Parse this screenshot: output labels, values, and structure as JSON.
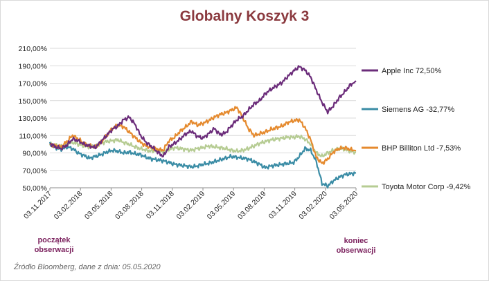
{
  "chart_data": {
    "type": "line",
    "title": "Globalny Koszyk 3",
    "xlabel": "",
    "ylabel": "",
    "ylim": [
      50,
      210
    ],
    "y_ticks": [
      "210,00%",
      "190,00%",
      "170,00%",
      "150,00%",
      "130,00%",
      "110,00%",
      "90,00%",
      "70,00%",
      "50,00%"
    ],
    "x_ticks": [
      "03.11.2017",
      "03.02.2018",
      "03.05.2018",
      "03.08.2018",
      "03.11.2018",
      "03.02.2019",
      "03.05.2019",
      "03.08.2019",
      "03.11.2019",
      "03.02.2020",
      "03.05.2020"
    ],
    "grid": "horizontal",
    "legend_position": "right",
    "series": [
      {
        "name": "Apple Inc 72,50%",
        "color": "#6b2c7a",
        "values": [
          101,
          97,
          95,
          99,
          106,
          104,
          100,
          98,
          96,
          103,
          110,
          117,
          121,
          128,
          131,
          123,
          110,
          102,
          97,
          91,
          86,
          97,
          101,
          106,
          112,
          115,
          109,
          107,
          112,
          118,
          111,
          113,
          121,
          128,
          132,
          139,
          146,
          150,
          158,
          163,
          167,
          171,
          178,
          184,
          189,
          185,
          177,
          162,
          148,
          137,
          144,
          153,
          160,
          168,
          172.5
        ]
      },
      {
        "name": "Siemens AG -32,77%",
        "color": "#3a8ca5",
        "values": [
          100,
          96,
          94,
          97,
          95,
          90,
          87,
          84,
          86,
          88,
          91,
          93,
          92,
          90,
          91,
          89,
          88,
          85,
          83,
          82,
          81,
          79,
          77,
          76,
          75,
          74,
          75,
          77,
          78,
          80,
          82,
          84,
          86,
          85,
          84,
          83,
          80,
          77,
          73,
          75,
          76,
          77,
          78,
          79,
          86,
          95,
          93,
          80,
          55,
          52,
          58,
          62,
          65,
          66,
          67.2
        ]
      },
      {
        "name": "BHP Billiton Ltd -7,53%",
        "color": "#e58a2e",
        "values": [
          100,
          98,
          97,
          103,
          110,
          106,
          101,
          98,
          97,
          102,
          110,
          118,
          122,
          120,
          114,
          108,
          102,
          98,
          96,
          94,
          93,
          104,
          108,
          115,
          120,
          126,
          122,
          124,
          127,
          131,
          134,
          136,
          139,
          142,
          131,
          118,
          110,
          112,
          114,
          117,
          119,
          121,
          125,
          127,
          128,
          119,
          105,
          85,
          78,
          83,
          91,
          95,
          96,
          94,
          92.5
        ]
      },
      {
        "name": "Toyota Motor Corp -9,42%",
        "color": "#b6cc93",
        "values": [
          100,
          99,
          97,
          100,
          102,
          100,
          98,
          97,
          98,
          101,
          103,
          104,
          105,
          102,
          100,
          97,
          95,
          93,
          92,
          93,
          91,
          94,
          96,
          95,
          94,
          93,
          95,
          96,
          98,
          97,
          96,
          95,
          93,
          92,
          93,
          95,
          98,
          101,
          103,
          105,
          106,
          107,
          108,
          108,
          109,
          106,
          100,
          90,
          86,
          90,
          93,
          95,
          94,
          92,
          90.6
        ]
      }
    ]
  },
  "notes": {
    "start": "początek\nobserwacji",
    "end": "koniec\nobserwacji"
  },
  "source": "Źródło Bloomberg, dane z dnia: 05.05.2020"
}
